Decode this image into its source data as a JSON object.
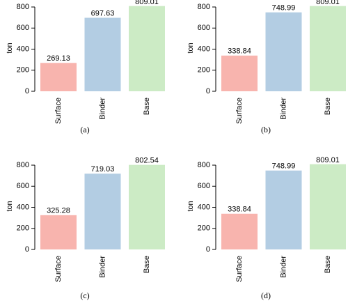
{
  "chart_data": [
    {
      "type": "bar",
      "caption": "(a)",
      "y_label": "ton",
      "categories": [
        "Surface",
        "Binder",
        "Base"
      ],
      "values": [
        269.13,
        697.63,
        809.01
      ],
      "colors": [
        "#f8b4ae",
        "#b3cde3",
        "#ccebc5"
      ],
      "ylim": [
        0,
        820
      ],
      "yticks": [
        0,
        200,
        400,
        600,
        800
      ]
    },
    {
      "type": "bar",
      "caption": "(b)",
      "y_label": "ton",
      "categories": [
        "Surface",
        "Binder",
        "Base"
      ],
      "values": [
        338.84,
        748.99,
        809.01
      ],
      "colors": [
        "#f8b4ae",
        "#b3cde3",
        "#ccebc5"
      ],
      "ylim": [
        0,
        820
      ],
      "yticks": [
        0,
        200,
        400,
        600,
        800
      ]
    },
    {
      "type": "bar",
      "caption": "(c)",
      "y_label": "ton",
      "categories": [
        "Surface",
        "Binder",
        "Base"
      ],
      "values": [
        325.28,
        719.03,
        802.54
      ],
      "colors": [
        "#f8b4ae",
        "#b3cde3",
        "#ccebc5"
      ],
      "ylim": [
        0,
        820
      ],
      "yticks": [
        0,
        200,
        400,
        600,
        800
      ]
    },
    {
      "type": "bar",
      "caption": "(d)",
      "y_label": "ton",
      "categories": [
        "Surface",
        "Binder",
        "Base"
      ],
      "values": [
        338.84,
        748.99,
        809.01
      ],
      "colors": [
        "#f8b4ae",
        "#b3cde3",
        "#ccebc5"
      ],
      "ylim": [
        0,
        820
      ],
      "yticks": [
        0,
        200,
        400,
        600,
        800
      ]
    }
  ]
}
